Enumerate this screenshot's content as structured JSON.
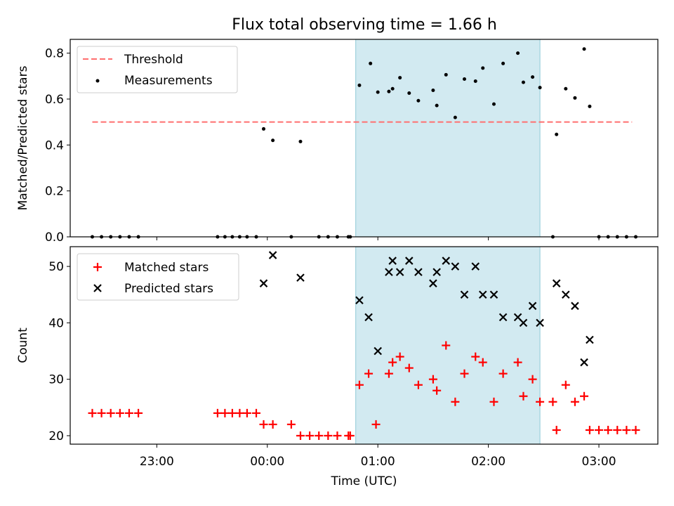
{
  "chart_data": {
    "title": "Flux total observing time = 1.66 h",
    "xlabel": "Time (UTC)",
    "x_range": [
      "22:13",
      "03:32"
    ],
    "x_ticks": [
      "23:00",
      "00:00",
      "01:00",
      "02:00",
      "03:00"
    ],
    "observing_window": {
      "start": "00:48",
      "end": "02:28",
      "color": "#add8e6"
    },
    "panels": [
      {
        "type": "scatter",
        "ylabel": "Matched/Predicted stars",
        "ylim": [
          0,
          0.86
        ],
        "y_ticks": [
          "0.0",
          "0.2",
          "0.4",
          "0.6",
          "0.8"
        ],
        "grid": false,
        "legend_position": "upper-left",
        "threshold": {
          "name": "Threshold",
          "value": 0.5,
          "x": [
            "22:25",
            "03:18"
          ],
          "color": "#ff6f6f",
          "style": "dashed"
        },
        "series": [
          {
            "name": "Measurements",
            "color": "#000000",
            "marker": "dot",
            "points": [
              [
                "22:25",
                0
              ],
              [
                "22:30",
                0
              ],
              [
                "22:35",
                0
              ],
              [
                "22:40",
                0
              ],
              [
                "22:45",
                0
              ],
              [
                "22:50",
                0
              ],
              [
                "23:33",
                0
              ],
              [
                "23:37",
                0
              ],
              [
                "23:41",
                0
              ],
              [
                "23:45",
                0
              ],
              [
                "23:49",
                0
              ],
              [
                "23:54",
                0
              ],
              [
                "23:58",
                0.47
              ],
              [
                "00:03",
                0.42
              ],
              [
                "00:13",
                0
              ],
              [
                "00:18",
                0.415
              ],
              [
                "00:28",
                0
              ],
              [
                "00:33",
                0
              ],
              [
                "00:38",
                0
              ],
              [
                "00:44",
                0
              ],
              [
                "00:45",
                0
              ],
              [
                "00:50",
                0.66
              ],
              [
                "00:56",
                0.755
              ],
              [
                "01:00",
                0.63
              ],
              [
                "01:06",
                0.633
              ],
              [
                "01:08",
                0.645
              ],
              [
                "01:12",
                0.693
              ],
              [
                "01:17",
                0.626
              ],
              [
                "01:22",
                0.593
              ],
              [
                "01:30",
                0.638
              ],
              [
                "01:32",
                0.572
              ],
              [
                "01:37",
                0.706
              ],
              [
                "01:42",
                0.52
              ],
              [
                "01:47",
                0.687
              ],
              [
                "01:53",
                0.678
              ],
              [
                "01:57",
                0.735
              ],
              [
                "02:03",
                0.578
              ],
              [
                "02:08",
                0.755
              ],
              [
                "02:16",
                0.8
              ],
              [
                "02:19",
                0.673
              ],
              [
                "02:24",
                0.696
              ],
              [
                "02:28",
                0.65
              ],
              [
                "02:35",
                0
              ],
              [
                "02:37",
                0.446
              ],
              [
                "02:42",
                0.645
              ],
              [
                "02:47",
                0.605
              ],
              [
                "02:52",
                0.818
              ],
              [
                "02:55",
                0.568
              ],
              [
                "03:00",
                0
              ],
              [
                "03:05",
                0
              ],
              [
                "03:10",
                0
              ],
              [
                "03:15",
                0
              ],
              [
                "03:20",
                0
              ]
            ]
          }
        ]
      },
      {
        "type": "scatter",
        "ylabel": "Count",
        "ylim": [
          18.5,
          53.5
        ],
        "y_ticks": [
          "20",
          "30",
          "40",
          "50"
        ],
        "grid": false,
        "legend_position": "upper-left",
        "series": [
          {
            "name": "Matched stars",
            "color": "#ff0000",
            "marker": "plus",
            "points": [
              [
                "22:25",
                24
              ],
              [
                "22:30",
                24
              ],
              [
                "22:35",
                24
              ],
              [
                "22:40",
                24
              ],
              [
                "22:45",
                24
              ],
              [
                "22:50",
                24
              ],
              [
                "23:33",
                24
              ],
              [
                "23:37",
                24
              ],
              [
                "23:41",
                24
              ],
              [
                "23:45",
                24
              ],
              [
                "23:49",
                24
              ],
              [
                "23:54",
                24
              ],
              [
                "23:58",
                22
              ],
              [
                "00:03",
                22
              ],
              [
                "00:13",
                22
              ],
              [
                "00:18",
                20
              ],
              [
                "00:23",
                20
              ],
              [
                "00:28",
                20
              ],
              [
                "00:33",
                20
              ],
              [
                "00:38",
                20
              ],
              [
                "00:44",
                20
              ],
              [
                "00:45",
                20
              ],
              [
                "00:50",
                29
              ],
              [
                "00:55",
                31
              ],
              [
                "00:59",
                22
              ],
              [
                "01:06",
                31
              ],
              [
                "01:08",
                33
              ],
              [
                "01:12",
                34
              ],
              [
                "01:17",
                32
              ],
              [
                "01:22",
                29
              ],
              [
                "01:30",
                30
              ],
              [
                "01:32",
                28
              ],
              [
                "01:37",
                36
              ],
              [
                "01:42",
                26
              ],
              [
                "01:47",
                31
              ],
              [
                "01:53",
                34
              ],
              [
                "01:57",
                33
              ],
              [
                "02:03",
                26
              ],
              [
                "02:08",
                31
              ],
              [
                "02:16",
                33
              ],
              [
                "02:19",
                27
              ],
              [
                "02:24",
                30
              ],
              [
                "02:28",
                26
              ],
              [
                "02:35",
                26
              ],
              [
                "02:37",
                21
              ],
              [
                "02:42",
                29
              ],
              [
                "02:47",
                26
              ],
              [
                "02:52",
                27
              ],
              [
                "02:55",
                21
              ],
              [
                "03:00",
                21
              ],
              [
                "03:05",
                21
              ],
              [
                "03:10",
                21
              ],
              [
                "03:15",
                21
              ],
              [
                "03:20",
                21
              ]
            ]
          },
          {
            "name": "Predicted stars",
            "color": "#000000",
            "marker": "x",
            "points": [
              [
                "23:58",
                47
              ],
              [
                "00:03",
                52
              ],
              [
                "00:18",
                48
              ],
              [
                "00:50",
                44
              ],
              [
                "00:55",
                41
              ],
              [
                "01:00",
                35
              ],
              [
                "01:06",
                49
              ],
              [
                "01:08",
                51
              ],
              [
                "01:12",
                49
              ],
              [
                "01:17",
                51
              ],
              [
                "01:22",
                49
              ],
              [
                "01:30",
                47
              ],
              [
                "01:32",
                49
              ],
              [
                "01:37",
                51
              ],
              [
                "01:42",
                50
              ],
              [
                "01:47",
                45
              ],
              [
                "01:53",
                50
              ],
              [
                "01:57",
                45
              ],
              [
                "02:03",
                45
              ],
              [
                "02:08",
                41
              ],
              [
                "02:16",
                41
              ],
              [
                "02:19",
                40
              ],
              [
                "02:24",
                43
              ],
              [
                "02:28",
                40
              ],
              [
                "02:37",
                47
              ],
              [
                "02:42",
                45
              ],
              [
                "02:47",
                43
              ],
              [
                "02:52",
                33
              ],
              [
                "02:55",
                37
              ]
            ]
          }
        ]
      }
    ]
  }
}
